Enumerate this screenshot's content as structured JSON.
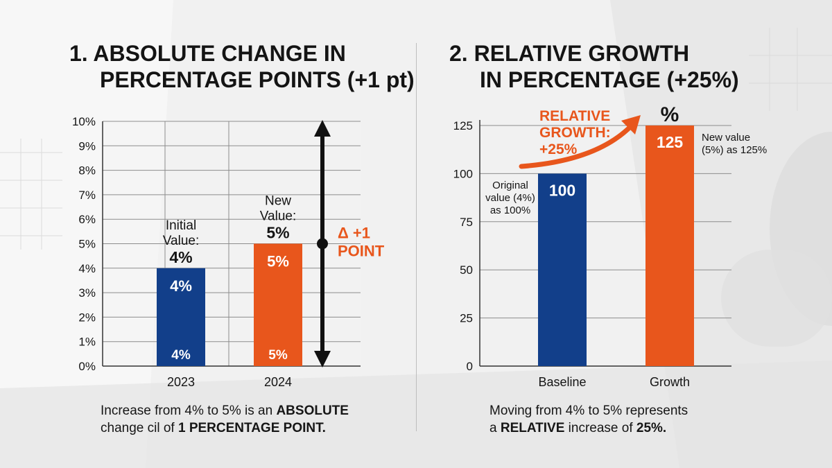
{
  "colors": {
    "blue": "#123f8a",
    "orange": "#e8561c",
    "grid": "#8c8c8c",
    "text": "#141414",
    "background": "#eeeeee"
  },
  "left_panel": {
    "title_line1": "1.  ABSOLUTE CHANGE IN",
    "title_line2": "PERCENTAGE POINTS (+1 pt)",
    "caption_line1_pre": "Increase from 4% to 5% is an ",
    "caption_line1_bold": "ABSOLUTE",
    "caption_line2_pre": "change cil of ",
    "caption_line2_bold": "1 PERCENTAGE POINT."
  },
  "right_panel": {
    "title_line1": "2.  RELATIVE GROWTH",
    "title_line2": "IN PERCENTAGE (+25%)",
    "caption_line1": "Moving from 4% to 5% represents",
    "caption_line2_pre": "a ",
    "caption_line2_bold1": "RELATIVE",
    "caption_line2_mid": " increase of ",
    "caption_line2_bold2": "25%."
  },
  "chart_data": [
    {
      "type": "bar",
      "categories": [
        "2023",
        "2024"
      ],
      "values": [
        4,
        5
      ],
      "ylim": [
        0,
        10
      ],
      "yticks": [
        0,
        1,
        2,
        3,
        4,
        5,
        6,
        7,
        8,
        9,
        10
      ],
      "ytick_labels": [
        "0%",
        "1%",
        "2%",
        "3%",
        "4%",
        "5%",
        "6%",
        "7%",
        "8%",
        "9%",
        "10%"
      ],
      "grid": true,
      "bar_colors": [
        "#123f8a",
        "#e8561c"
      ],
      "bar_top_labels": [
        "4%",
        "5%"
      ],
      "bar_bottom_labels": [
        "4%",
        "5%"
      ],
      "annotations": {
        "initial": [
          "Initial",
          "Value:",
          "4%"
        ],
        "new": [
          "New",
          "Value:",
          "5%"
        ],
        "delta": [
          "Δ +1",
          "POINT"
        ]
      }
    },
    {
      "type": "bar",
      "categories": [
        "Baseline",
        "Growth"
      ],
      "values": [
        100,
        125
      ],
      "ylim": [
        0,
        125
      ],
      "yticks": [
        0,
        25,
        50,
        75,
        100,
        125
      ],
      "ytick_labels": [
        "0",
        "25",
        "50",
        "75",
        "100",
        "125"
      ],
      "grid": true,
      "bar_colors": [
        "#123f8a",
        "#e8561c"
      ],
      "bar_labels": [
        "100",
        "125"
      ],
      "unit_label": "%",
      "annotations": {
        "baseline_note": [
          "Original",
          "value (4%)",
          "as 100%"
        ],
        "growth_note": [
          "New value",
          "(5%) as 125%"
        ],
        "relative_growth": [
          "RELATIVE",
          "GROWTH:",
          "+25%"
        ]
      }
    }
  ]
}
